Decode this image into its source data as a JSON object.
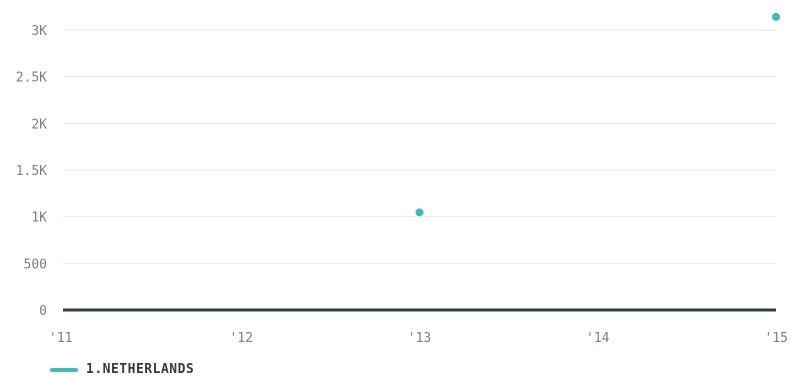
{
  "chart_data": {
    "type": "scatter",
    "x_ticks": [
      "'11",
      "'12",
      "'13",
      "'14",
      "'15"
    ],
    "x_values": [
      2011,
      2012,
      2013,
      2014,
      2015
    ],
    "y_ticks": [
      "0",
      "500",
      "1K",
      "1.5K",
      "2K",
      "2.5K",
      "3K"
    ],
    "y_tick_values": [
      0,
      500,
      1000,
      1500,
      2000,
      2500,
      3000
    ],
    "ylim": [
      0,
      3000
    ],
    "xlim": [
      2011,
      2015
    ],
    "grid": true,
    "legend_position": "bottom-left",
    "series": [
      {
        "name": "1.NETHERLANDS",
        "color": "#3dbcbc",
        "points": [
          {
            "x": 2013,
            "y": 1045
          },
          {
            "x": 2015,
            "y": 3140
          }
        ]
      }
    ]
  }
}
